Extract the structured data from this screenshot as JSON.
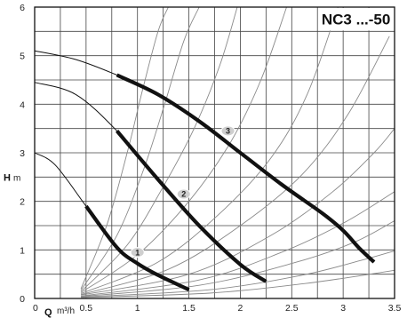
{
  "chart_data": {
    "type": "line",
    "title": "NC3 ...-50",
    "x_axis": {
      "name": "Q",
      "unit": "m³/h",
      "range": [
        0,
        3.5
      ],
      "ticks": [
        0,
        0.5,
        1,
        1.5,
        2,
        2.5,
        3,
        3.5
      ],
      "tick_labels": [
        "0",
        "0.5",
        "1",
        "1.5",
        "2",
        "2.5",
        "3",
        "3.5"
      ]
    },
    "y_axis": {
      "name": "H",
      "unit": "m",
      "range": [
        0,
        6
      ],
      "ticks": [
        0,
        1,
        2,
        3,
        4,
        5,
        6
      ],
      "tick_labels": [
        "0",
        "1",
        "2",
        "3",
        "4",
        "5",
        "6"
      ]
    },
    "grid": true,
    "series": [
      {
        "name": "1",
        "curve_x": [
          0,
          0.2,
          0.5,
          0.8,
          1.0,
          1.2,
          1.5
        ],
        "curve_y": [
          3.0,
          2.75,
          1.9,
          1.05,
          0.72,
          0.48,
          0.18
        ],
        "bold_from_x": 0.5,
        "label_at": [
          1.0,
          0.95
        ]
      },
      {
        "name": "2",
        "curve_x": [
          0,
          0.4,
          0.8,
          1.2,
          1.6,
          2.0,
          2.25
        ],
        "curve_y": [
          4.45,
          4.2,
          3.45,
          2.45,
          1.5,
          0.7,
          0.35
        ],
        "bold_from_x": 0.8,
        "label_at": [
          1.45,
          2.15
        ]
      },
      {
        "name": "3",
        "curve_x": [
          0,
          0.4,
          0.8,
          1.2,
          1.6,
          2.0,
          2.4,
          2.8,
          3.0,
          3.15,
          3.3
        ],
        "curve_y": [
          5.1,
          4.92,
          4.6,
          4.2,
          3.65,
          3.0,
          2.35,
          1.75,
          1.4,
          1.05,
          0.75
        ],
        "bold_from_x": 0.8,
        "label_at": [
          1.88,
          3.45
        ]
      }
    ],
    "system_curves": [
      {
        "x": [
          0.45,
          0.7,
          0.9,
          1.05,
          1.2,
          1.3
        ],
        "y": [
          0.2,
          1.5,
          3.0,
          4.3,
          5.5,
          6.0
        ]
      },
      {
        "x": [
          0.45,
          0.8,
          1.05,
          1.25,
          1.45,
          1.6
        ],
        "y": [
          0.17,
          1.3,
          2.6,
          3.9,
          5.3,
          6.0
        ]
      },
      {
        "x": [
          0.45,
          0.9,
          1.25,
          1.55,
          1.8,
          1.97
        ],
        "y": [
          0.14,
          1.1,
          2.3,
          3.5,
          4.8,
          6.0
        ]
      },
      {
        "x": [
          0.45,
          1.0,
          1.5,
          1.9,
          2.2,
          2.45
        ],
        "y": [
          0.12,
          0.9,
          2.0,
          3.2,
          4.5,
          6.0
        ]
      },
      {
        "x": [
          0.45,
          1.2,
          1.8,
          2.3,
          2.65,
          2.95
        ],
        "y": [
          0.1,
          0.75,
          1.75,
          2.9,
          4.2,
          6.0
        ]
      },
      {
        "x": [
          0.45,
          1.3,
          2.0,
          2.6,
          3.05,
          3.45
        ],
        "y": [
          0.08,
          0.6,
          1.5,
          2.55,
          3.8,
          5.4
        ]
      },
      {
        "x": [
          0.45,
          1.5,
          2.3,
          2.9,
          3.3,
          3.5
        ],
        "y": [
          0.07,
          0.5,
          1.3,
          2.2,
          3.0,
          3.5
        ]
      },
      {
        "x": [
          0.45,
          1.6,
          2.4,
          3.0,
          3.5
        ],
        "y": [
          0.05,
          0.38,
          0.95,
          1.55,
          2.2
        ]
      },
      {
        "x": [
          0.45,
          1.6,
          2.5,
          3.1,
          3.5
        ],
        "y": [
          0.04,
          0.27,
          0.72,
          1.15,
          1.6
        ]
      },
      {
        "x": [
          0.45,
          1.7,
          2.6,
          3.2,
          3.5
        ],
        "y": [
          0.03,
          0.18,
          0.48,
          0.8,
          0.98
        ]
      },
      {
        "x": [
          0.45,
          1.7,
          2.6,
          3.2,
          3.5
        ],
        "y": [
          0.02,
          0.11,
          0.3,
          0.48,
          0.58
        ]
      }
    ]
  }
}
